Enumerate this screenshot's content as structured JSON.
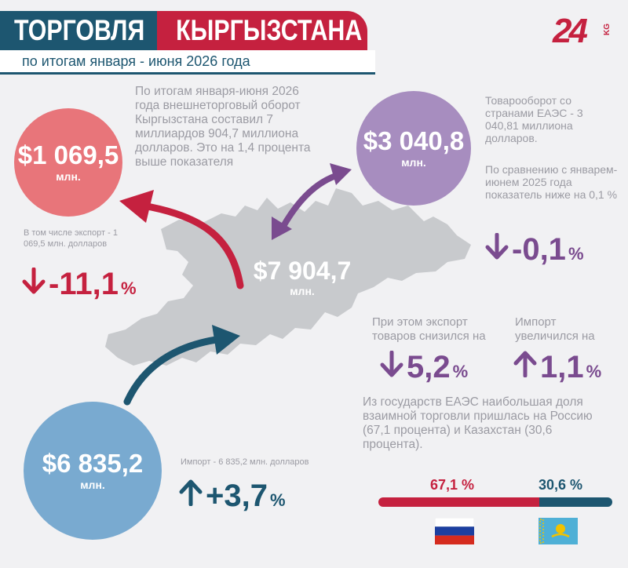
{
  "header": {
    "title_part1": "ТОРГОВЛЯ",
    "title_part2": "КЫРГЫЗСТАНА",
    "subtitle": "по итогам января - июня 2026 года",
    "logo_text": "24",
    "logo_sub": "KG"
  },
  "intro": "По итогам января-июня 2026 года внешнеторговый оборот Кыргызстана составил 7 миллиардов 904,7 миллиона долларов. Это на 1,4 процента выше показателя",
  "total": {
    "value": "$7 904,7",
    "unit": "млн."
  },
  "export": {
    "value": "$1 069,5",
    "unit": "млн.",
    "note": "В том числе экспорт - 1 069,5 млн. долларов",
    "change": "-11,1",
    "pct": "%",
    "color": "#e8757a"
  },
  "import": {
    "value": "$6 835,2",
    "unit": "млн.",
    "note": "Импорт - 6 835,2 млн. долларов",
    "change": "+3,7",
    "pct": "%",
    "color": "#79aad0"
  },
  "eaeu": {
    "value": "$3 040,8",
    "unit": "млн.",
    "note1": "Товарооборот со странами ЕАЭС - 3 040,81 миллиона долларов.",
    "note2": "По сравнению с январем-июнем 2025 года показатель ниже на 0,1 %",
    "change": "-0,1",
    "pct": "%",
    "color": "#a78dbf",
    "export_note": "При этом экспорт товаров снизился на",
    "export_change": "5,2",
    "import_note": "Импорт увеличился на",
    "import_change": "1,1",
    "share_note": "Из государств ЕАЭС наибольшая доля взаимной торговли пришлась на Россию (67,1 процента) и Казахстан (30,6 процента).",
    "russia_share_label": "67,1 %",
    "kazakhstan_share_label": "30,6 %",
    "russia_share": 67.1,
    "kazakhstan_share": 30.6
  },
  "colors": {
    "red": "#c5213f",
    "navy": "#1d5670",
    "purple": "#7a4b8f",
    "map": "#c8cacd"
  }
}
